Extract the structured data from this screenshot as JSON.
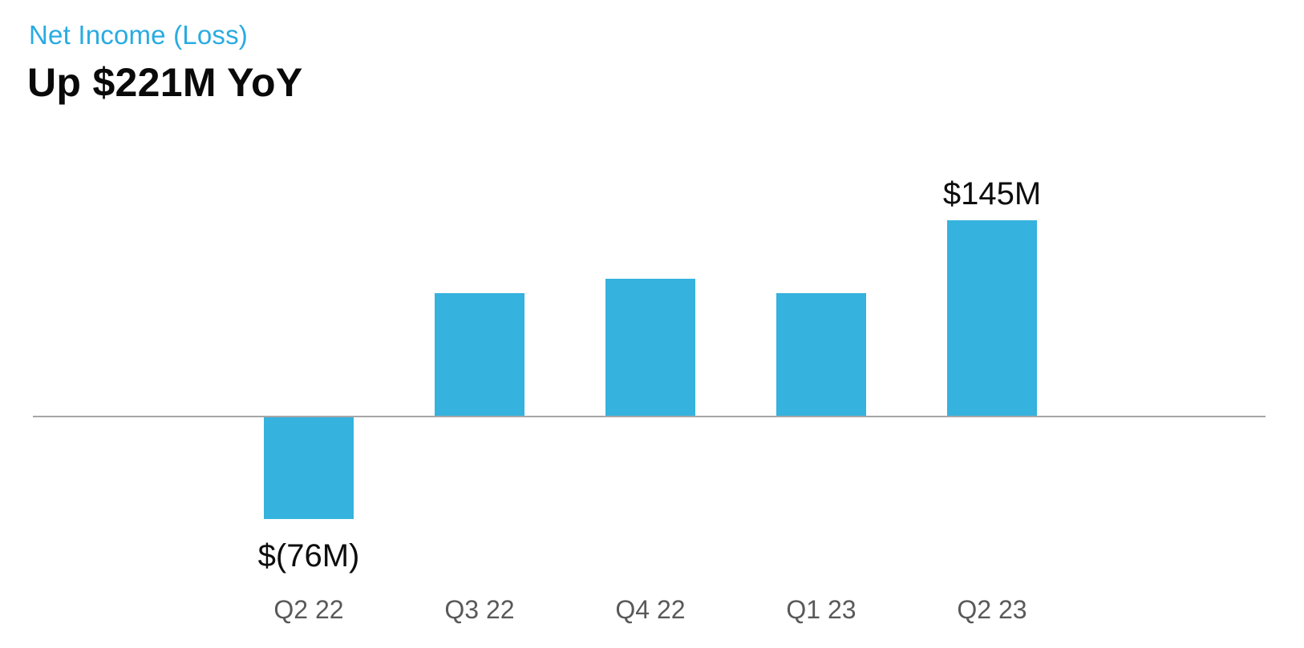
{
  "header": {
    "title": "Net Income (Loss)",
    "subtitle": "Up $221M YoY"
  },
  "colors": {
    "accent": "#29ABE2",
    "bar": "#35B2DE",
    "axis": "#A6A6A6",
    "tick_label": "#595959",
    "value_label": "#0D0D0D"
  },
  "chart_data": {
    "type": "bar",
    "title": "Net Income (Loss)",
    "subtitle": "Up $221M YoY",
    "categories": [
      "Q2 22",
      "Q3 22",
      "Q4 22",
      "Q1 23",
      "Q2 23"
    ],
    "values": [
      -76,
      91,
      102,
      91,
      145
    ],
    "unit": "$M",
    "data_labels": [
      "$(76M)",
      "",
      "",
      "",
      "$145M"
    ],
    "baseline": 0,
    "ylim": [
      -100,
      170
    ],
    "grid": false,
    "legend": false,
    "y_axis_visible": false,
    "x_axis_line": true
  }
}
